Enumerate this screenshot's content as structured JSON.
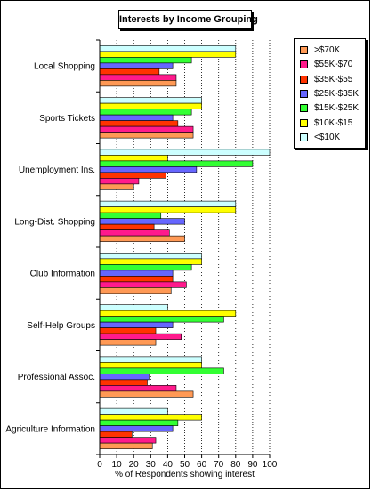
{
  "chart_data": {
    "type": "bar",
    "orientation": "horizontal",
    "title": "Interests by Income Grouping",
    "xlabel": "% of Respondents showing interest",
    "ylabel": "",
    "xlim": [
      0,
      100
    ],
    "x_ticks": [
      "0",
      "10",
      "20",
      "30",
      "40",
      "50",
      "60",
      "70",
      "80",
      "90",
      "100"
    ],
    "grid": "vertical dotted lines at 10-unit intervals",
    "legend_position": "top-right",
    "categories": [
      "Local Shopping",
      "Sports Tickets",
      "Unemployment Ins.",
      "Long-Dist. Shopping",
      "Club Information",
      "Self-Help Groups",
      "Professional Assoc.",
      "Agriculture Information"
    ],
    "series": [
      {
        "name": "<$10K",
        "color": "#ccffff",
        "values": [
          80,
          60,
          100,
          80,
          60,
          40,
          60,
          40
        ]
      },
      {
        "name": "$10K-$15",
        "color": "#ffff00",
        "values": [
          80,
          60,
          40,
          80,
          60,
          80,
          60,
          60
        ]
      },
      {
        "name": "$15K-$25K",
        "color": "#33ff33",
        "values": [
          54,
          54,
          90,
          36,
          54,
          73,
          73,
          46
        ]
      },
      {
        "name": "$25K-$35K",
        "color": "#6666ff",
        "values": [
          43,
          43,
          57,
          50,
          43,
          43,
          29,
          43
        ]
      },
      {
        "name": "$35K-$55",
        "color": "#ff3300",
        "values": [
          35,
          46,
          39,
          32,
          43,
          33,
          28,
          19
        ]
      },
      {
        "name": "$55K-$70",
        "color": "#ff1a8c",
        "values": [
          45,
          55,
          23,
          41,
          51,
          48,
          45,
          33
        ]
      },
      {
        "name": ">$70K",
        "color": "#ff9955",
        "values": [
          45,
          55,
          20,
          50,
          42,
          33,
          55,
          31
        ]
      }
    ],
    "legend_order": [
      ">$70K",
      "$55K-$70",
      "$35K-$55",
      "$25K-$35K",
      "$15K-$25K",
      "$10K-$15",
      "<$10K"
    ]
  }
}
